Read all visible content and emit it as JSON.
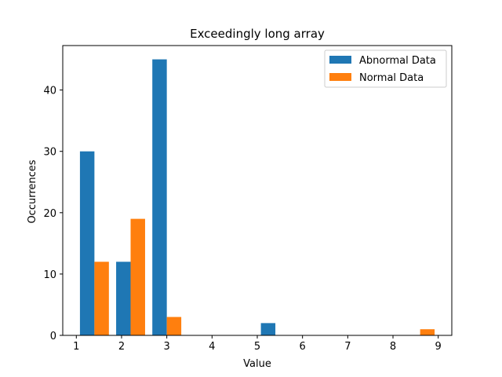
{
  "chart_data": {
    "type": "bar",
    "title": "Exceedingly long array",
    "xlabel": "Value",
    "ylabel": "Occurrences",
    "xlim": [
      0.7,
      9.3
    ],
    "ylim": [
      0,
      47.25
    ],
    "xticks": [
      1,
      2,
      3,
      4,
      5,
      6,
      7,
      8,
      9
    ],
    "yticks": [
      0,
      10,
      20,
      30,
      40
    ],
    "bar_width": 0.32,
    "grid": false,
    "legend_position": "top-right",
    "series": [
      {
        "name": "Abnormal Data",
        "color": "#1f77b4",
        "bars": [
          {
            "x": 1.24,
            "value": 30
          },
          {
            "x": 2.04,
            "value": 12
          },
          {
            "x": 2.84,
            "value": 45
          },
          {
            "x": 5.24,
            "value": 2
          }
        ]
      },
      {
        "name": "Normal Data",
        "color": "#ff7f0e",
        "bars": [
          {
            "x": 1.56,
            "value": 12
          },
          {
            "x": 2.36,
            "value": 19
          },
          {
            "x": 3.16,
            "value": 3
          },
          {
            "x": 8.76,
            "value": 1
          }
        ]
      }
    ]
  }
}
